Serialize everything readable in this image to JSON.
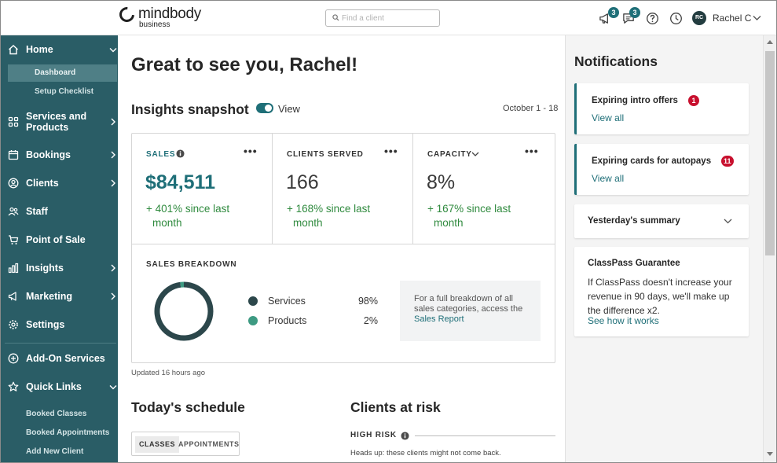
{
  "brand": {
    "name": "mindbody",
    "sub": "business"
  },
  "search": {
    "placeholder": "Find a client"
  },
  "topbar": {
    "announcements_badge": "3",
    "messages_badge": "3",
    "user_initials": "RC",
    "user_name": "Rachel C"
  },
  "sidebar": {
    "home": "Home",
    "dashboard": "Dashboard",
    "setup_checklist": "Setup Checklist",
    "services_products": [
      "Services and",
      "Products"
    ],
    "bookings": "Bookings",
    "clients": "Clients",
    "staff": "Staff",
    "point_of_sale": "Point of Sale",
    "insights": "Insights",
    "marketing": "Marketing",
    "settings": "Settings",
    "addon_services": "Add-On Services",
    "quick_links": "Quick Links",
    "booked_classes": "Booked Classes",
    "booked_appointments": "Booked Appointments",
    "add_new_client": "Add New Client"
  },
  "main": {
    "greeting": "Great to see you, Rachel!",
    "insights_title": "Insights snapshot",
    "view_toggle_label": "View",
    "date_range": "October 1 - 18",
    "kpis": [
      {
        "label": "SALES",
        "value": "$84,511",
        "delta_1": "+ 401% since last",
        "delta_2": "month"
      },
      {
        "label": "CLIENTS SERVED",
        "value": "166",
        "delta_1": "+ 168% since last",
        "delta_2": "month"
      },
      {
        "label": "CAPACITY",
        "value": "8%",
        "delta_1": "+ 167% since last",
        "delta_2": "month"
      }
    ],
    "more_glyph": "•••",
    "breakdown_title": "SALES BREAKDOWN",
    "breakdown": [
      {
        "name": "Services",
        "pct": "98%",
        "value": 98,
        "color": "#2c474b"
      },
      {
        "name": "Products",
        "pct": "2%",
        "value": 2,
        "color": "#3d9a82"
      }
    ],
    "report_text": "For a full breakdown of all sales categories, access the",
    "report_link": "Sales Report",
    "updated": "Updated 16 hours ago",
    "schedule_title": "Today's schedule",
    "tab_classes": "CLASSES",
    "tab_appointments": "APPOINTMENTS",
    "risk_title": "Clients at risk",
    "high_risk": "HIGH RISK",
    "risk_note": "Heads up: these clients might not come back."
  },
  "notifications": {
    "title": "Notifications",
    "intro": {
      "title": "Expiring intro offers",
      "badge": "1",
      "link": "View all"
    },
    "autopay": {
      "title": "Expiring cards for autopays",
      "badge": "11",
      "link": "View all"
    },
    "summary": {
      "title": "Yesterday's summary"
    },
    "classpass": {
      "title": "ClassPass Guarantee",
      "body": "If ClassPass doesn't increase your revenue in 90 days, we'll make up the difference x2.",
      "link": "See how it works"
    }
  },
  "colors": {
    "sidebar": "#2a5d66",
    "accent": "#1f6f78",
    "positive": "#2f8a3e",
    "alert": "#c8102e"
  }
}
